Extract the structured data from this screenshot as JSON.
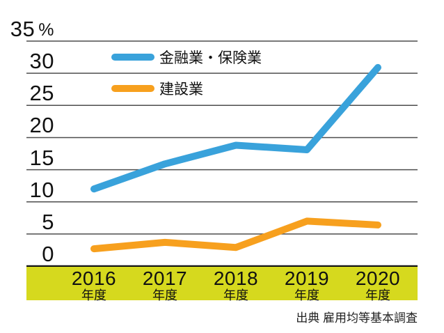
{
  "chart_data": {
    "type": "line",
    "unit": "%",
    "categories": [
      "2016",
      "2017",
      "2018",
      "2019",
      "2020"
    ],
    "category_sublabel": "年度",
    "y_ticks": [
      35,
      30,
      25,
      20,
      15,
      10,
      5,
      0
    ],
    "ylim": [
      0,
      35
    ],
    "grid": true,
    "legend_position": "top-left-inside",
    "series": [
      {
        "name": "金融業・保険業",
        "color": "#39a2db",
        "values": [
          12.0,
          15.9,
          18.8,
          18.1,
          30.9
        ]
      },
      {
        "name": "建設業",
        "color": "#f7a01e",
        "values": [
          2.7,
          3.7,
          2.9,
          7.0,
          6.4
        ]
      }
    ]
  },
  "source": "出典 雇用均等基本調査",
  "colors": {
    "band": "#d6d91e",
    "grid": "#4d4d4d",
    "zero_line": "#141414",
    "text": "#111111"
  }
}
